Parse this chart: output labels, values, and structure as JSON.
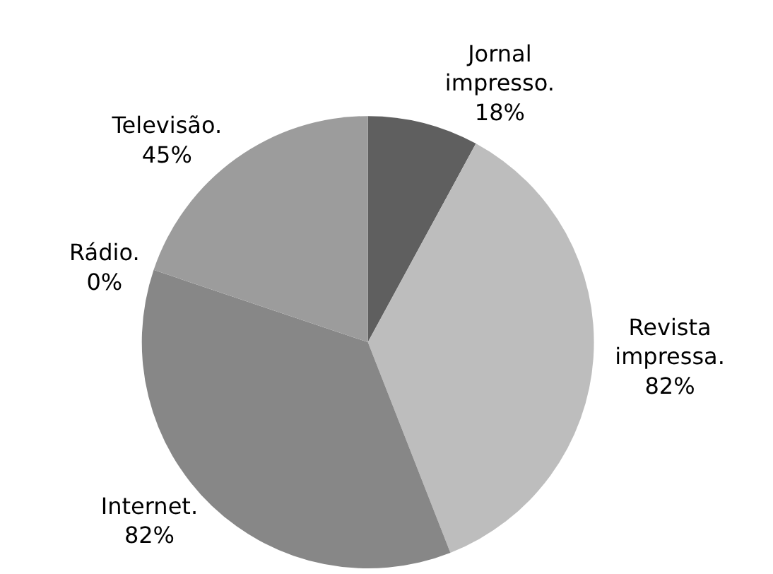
{
  "chart_data": {
    "type": "pie",
    "categories": [
      "Jornal impresso.",
      "Revista impressa.",
      "Internet.",
      "Rádio.",
      "Televisão."
    ],
    "values": [
      18,
      82,
      82,
      0,
      45
    ],
    "colors": [
      "#5f5f5f",
      "#bdbdbd",
      "#878787",
      "#a0a0a0",
      "#9c9c9c"
    ],
    "value_labels": [
      "18%",
      "82%",
      "82%",
      "0%",
      "45%"
    ],
    "legend": false
  }
}
